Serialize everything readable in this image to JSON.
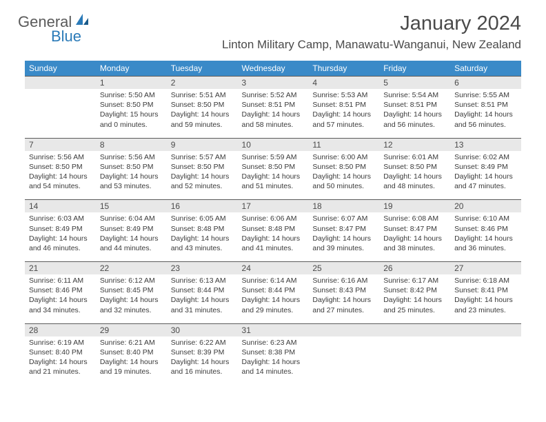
{
  "logo": {
    "text1": "General",
    "text2": "Blue"
  },
  "title": "January 2024",
  "location": "Linton Military Camp, Manawatu-Wanganui, New Zealand",
  "colors": {
    "header_bg": "#3a8ac8",
    "header_fg": "#ffffff",
    "daynum_bg": "#e8e8e8",
    "text": "#3a3a3a",
    "rule": "#5a5a5a"
  },
  "day_headers": [
    "Sunday",
    "Monday",
    "Tuesday",
    "Wednesday",
    "Thursday",
    "Friday",
    "Saturday"
  ],
  "weeks": [
    {
      "nums": [
        "",
        "1",
        "2",
        "3",
        "4",
        "5",
        "6"
      ],
      "cells": [
        null,
        {
          "sunrise": "5:50 AM",
          "sunset": "8:50 PM",
          "daylight": "15 hours and 0 minutes."
        },
        {
          "sunrise": "5:51 AM",
          "sunset": "8:50 PM",
          "daylight": "14 hours and 59 minutes."
        },
        {
          "sunrise": "5:52 AM",
          "sunset": "8:51 PM",
          "daylight": "14 hours and 58 minutes."
        },
        {
          "sunrise": "5:53 AM",
          "sunset": "8:51 PM",
          "daylight": "14 hours and 57 minutes."
        },
        {
          "sunrise": "5:54 AM",
          "sunset": "8:51 PM",
          "daylight": "14 hours and 56 minutes."
        },
        {
          "sunrise": "5:55 AM",
          "sunset": "8:51 PM",
          "daylight": "14 hours and 56 minutes."
        }
      ]
    },
    {
      "nums": [
        "7",
        "8",
        "9",
        "10",
        "11",
        "12",
        "13"
      ],
      "cells": [
        {
          "sunrise": "5:56 AM",
          "sunset": "8:50 PM",
          "daylight": "14 hours and 54 minutes."
        },
        {
          "sunrise": "5:56 AM",
          "sunset": "8:50 PM",
          "daylight": "14 hours and 53 minutes."
        },
        {
          "sunrise": "5:57 AM",
          "sunset": "8:50 PM",
          "daylight": "14 hours and 52 minutes."
        },
        {
          "sunrise": "5:59 AM",
          "sunset": "8:50 PM",
          "daylight": "14 hours and 51 minutes."
        },
        {
          "sunrise": "6:00 AM",
          "sunset": "8:50 PM",
          "daylight": "14 hours and 50 minutes."
        },
        {
          "sunrise": "6:01 AM",
          "sunset": "8:50 PM",
          "daylight": "14 hours and 48 minutes."
        },
        {
          "sunrise": "6:02 AM",
          "sunset": "8:49 PM",
          "daylight": "14 hours and 47 minutes."
        }
      ]
    },
    {
      "nums": [
        "14",
        "15",
        "16",
        "17",
        "18",
        "19",
        "20"
      ],
      "cells": [
        {
          "sunrise": "6:03 AM",
          "sunset": "8:49 PM",
          "daylight": "14 hours and 46 minutes."
        },
        {
          "sunrise": "6:04 AM",
          "sunset": "8:49 PM",
          "daylight": "14 hours and 44 minutes."
        },
        {
          "sunrise": "6:05 AM",
          "sunset": "8:48 PM",
          "daylight": "14 hours and 43 minutes."
        },
        {
          "sunrise": "6:06 AM",
          "sunset": "8:48 PM",
          "daylight": "14 hours and 41 minutes."
        },
        {
          "sunrise": "6:07 AM",
          "sunset": "8:47 PM",
          "daylight": "14 hours and 39 minutes."
        },
        {
          "sunrise": "6:08 AM",
          "sunset": "8:47 PM",
          "daylight": "14 hours and 38 minutes."
        },
        {
          "sunrise": "6:10 AM",
          "sunset": "8:46 PM",
          "daylight": "14 hours and 36 minutes."
        }
      ]
    },
    {
      "nums": [
        "21",
        "22",
        "23",
        "24",
        "25",
        "26",
        "27"
      ],
      "cells": [
        {
          "sunrise": "6:11 AM",
          "sunset": "8:46 PM",
          "daylight": "14 hours and 34 minutes."
        },
        {
          "sunrise": "6:12 AM",
          "sunset": "8:45 PM",
          "daylight": "14 hours and 32 minutes."
        },
        {
          "sunrise": "6:13 AM",
          "sunset": "8:44 PM",
          "daylight": "14 hours and 31 minutes."
        },
        {
          "sunrise": "6:14 AM",
          "sunset": "8:44 PM",
          "daylight": "14 hours and 29 minutes."
        },
        {
          "sunrise": "6:16 AM",
          "sunset": "8:43 PM",
          "daylight": "14 hours and 27 minutes."
        },
        {
          "sunrise": "6:17 AM",
          "sunset": "8:42 PM",
          "daylight": "14 hours and 25 minutes."
        },
        {
          "sunrise": "6:18 AM",
          "sunset": "8:41 PM",
          "daylight": "14 hours and 23 minutes."
        }
      ]
    },
    {
      "nums": [
        "28",
        "29",
        "30",
        "31",
        "",
        "",
        ""
      ],
      "cells": [
        {
          "sunrise": "6:19 AM",
          "sunset": "8:40 PM",
          "daylight": "14 hours and 21 minutes."
        },
        {
          "sunrise": "6:21 AM",
          "sunset": "8:40 PM",
          "daylight": "14 hours and 19 minutes."
        },
        {
          "sunrise": "6:22 AM",
          "sunset": "8:39 PM",
          "daylight": "14 hours and 16 minutes."
        },
        {
          "sunrise": "6:23 AM",
          "sunset": "8:38 PM",
          "daylight": "14 hours and 14 minutes."
        },
        null,
        null,
        null
      ]
    }
  ],
  "labels": {
    "sunrise_prefix": "Sunrise: ",
    "sunset_prefix": "Sunset: ",
    "daylight_prefix": "Daylight: "
  }
}
